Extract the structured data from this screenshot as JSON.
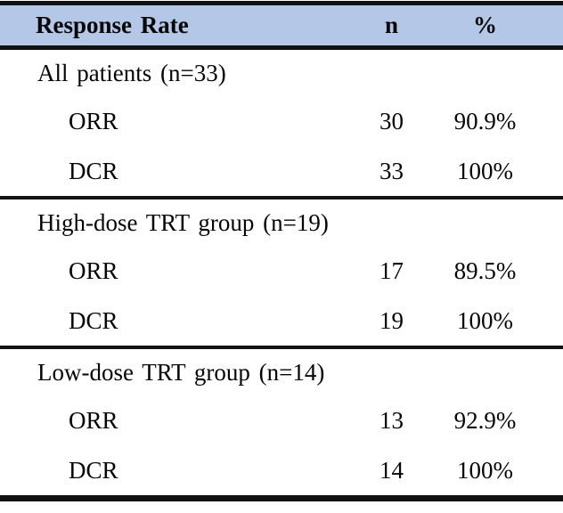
{
  "table": {
    "header": {
      "response_rate": "Response Rate",
      "n": "n",
      "percent": "%"
    },
    "sections": [
      {
        "label": "All patients (n=33)",
        "rows": [
          {
            "label": "ORR",
            "n": "30",
            "percent": "90.9%"
          },
          {
            "label": "DCR",
            "n": "33",
            "percent": "100%"
          }
        ]
      },
      {
        "label": "High-dose TRT group (n=19)",
        "rows": [
          {
            "label": "ORR",
            "n": "17",
            "percent": "89.5%"
          },
          {
            "label": "DCR",
            "n": "19",
            "percent": "100%"
          }
        ]
      },
      {
        "label": "Low-dose TRT group (n=14)",
        "rows": [
          {
            "label": "ORR",
            "n": "13",
            "percent": "92.9%"
          },
          {
            "label": "DCR",
            "n": "14",
            "percent": "100%"
          }
        ]
      }
    ],
    "colors": {
      "header_bg": "#B4C7E7",
      "border": "#111111",
      "text": "#060606"
    }
  }
}
